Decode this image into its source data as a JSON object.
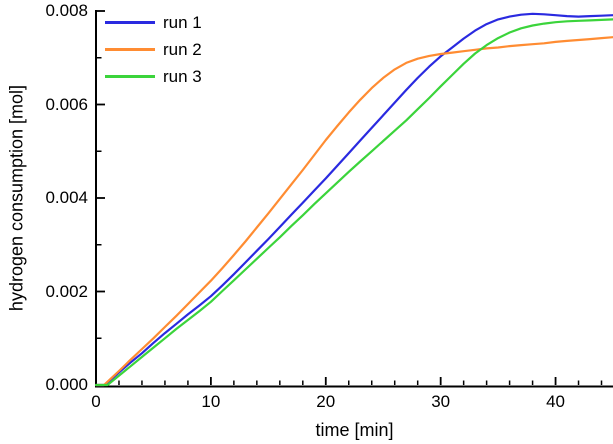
{
  "chart_data": {
    "type": "line",
    "title": "",
    "xlabel": "time [min]",
    "ylabel": "hydrogen consumption [mol]",
    "xlim": [
      0,
      45
    ],
    "ylim": [
      0,
      0.008
    ],
    "grid": false,
    "legend_position": "top-left",
    "background_color": "#ffffff",
    "axis_color": "#000000",
    "x_major_ticks": [
      0,
      10,
      20,
      30,
      40
    ],
    "x_tick_labels": [
      "0",
      "10",
      "20",
      "30",
      "40"
    ],
    "x_minor_step": 2,
    "y_major_ticks": [
      0,
      0.002,
      0.004,
      0.006,
      0.008
    ],
    "y_tick_labels": [
      "0.000",
      "0.002",
      "0.004",
      "0.006",
      "0.008"
    ],
    "y_minor_step": 0.001,
    "series": [
      {
        "name": "run 1",
        "color": "#2a2ae0",
        "x": [
          0,
          0.7,
          1,
          2,
          3,
          4,
          5,
          6,
          7,
          8,
          9,
          10,
          11,
          12,
          13,
          14,
          15,
          16,
          17,
          18,
          19,
          20,
          21,
          22,
          23,
          24,
          25,
          26,
          27,
          28,
          29,
          30,
          31,
          32,
          33,
          34,
          35,
          36,
          37,
          38,
          39,
          40,
          41,
          42,
          43,
          44,
          45
        ],
        "y": [
          0,
          0,
          5e-05,
          0.00027,
          0.00048,
          0.00068,
          0.0009,
          0.00111,
          0.00131,
          0.00151,
          0.0017,
          0.0019,
          0.00213,
          0.00237,
          0.00262,
          0.00287,
          0.00312,
          0.00338,
          0.00364,
          0.0039,
          0.00416,
          0.00442,
          0.00469,
          0.00496,
          0.00523,
          0.0055,
          0.00577,
          0.00604,
          0.00631,
          0.00657,
          0.00681,
          0.00703,
          0.00722,
          0.00741,
          0.00758,
          0.00772,
          0.00782,
          0.00788,
          0.00792,
          0.00794,
          0.00793,
          0.00791,
          0.00789,
          0.00788,
          0.00789,
          0.0079,
          0.00791
        ]
      },
      {
        "name": "run 2",
        "color": "#ff8c32",
        "x": [
          0,
          0.7,
          2,
          3,
          4,
          5,
          6,
          7,
          8,
          9,
          10,
          11,
          12,
          13,
          14,
          15,
          16,
          17,
          18,
          19,
          20,
          21,
          22,
          23,
          24,
          25,
          26,
          27,
          28,
          29,
          30,
          31,
          32,
          33,
          34,
          35,
          36,
          37,
          38,
          39,
          40,
          41,
          42,
          43,
          44,
          45
        ],
        "y": [
          0,
          0,
          0.0003,
          0.00054,
          0.00077,
          0.001,
          0.00124,
          0.00148,
          0.00173,
          0.00198,
          0.00223,
          0.0025,
          0.00278,
          0.00307,
          0.00337,
          0.00367,
          0.00398,
          0.00429,
          0.0046,
          0.00492,
          0.00524,
          0.00554,
          0.00583,
          0.0061,
          0.00635,
          0.00657,
          0.00675,
          0.00689,
          0.00698,
          0.00704,
          0.00708,
          0.00711,
          0.00714,
          0.00717,
          0.0072,
          0.00722,
          0.00725,
          0.00727,
          0.00729,
          0.00731,
          0.00734,
          0.00736,
          0.00738,
          0.0074,
          0.00742,
          0.00744
        ]
      },
      {
        "name": "run 3",
        "color": "#3bd43b",
        "x": [
          0,
          1,
          2,
          3,
          4,
          5,
          6,
          7,
          8,
          9,
          10,
          11,
          12,
          13,
          14,
          15,
          16,
          17,
          18,
          19,
          20,
          21,
          22,
          23,
          24,
          25,
          26,
          27,
          28,
          29,
          30,
          31,
          32,
          33,
          34,
          35,
          36,
          37,
          38,
          39,
          40,
          41,
          42,
          43,
          44,
          45
        ],
        "y": [
          0,
          0,
          0.0002,
          0.0004,
          0.0006,
          0.0008,
          0.001,
          0.0012,
          0.00139,
          0.00158,
          0.00178,
          0.00201,
          0.00224,
          0.00247,
          0.0027,
          0.00293,
          0.00316,
          0.0034,
          0.00363,
          0.00387,
          0.0041,
          0.00433,
          0.00456,
          0.00478,
          0.005,
          0.00522,
          0.00544,
          0.00566,
          0.0059,
          0.00614,
          0.00639,
          0.00663,
          0.00687,
          0.00709,
          0.00727,
          0.00742,
          0.00754,
          0.00763,
          0.00769,
          0.00773,
          0.00776,
          0.00778,
          0.00779,
          0.0078,
          0.00781,
          0.00782
        ]
      }
    ]
  }
}
